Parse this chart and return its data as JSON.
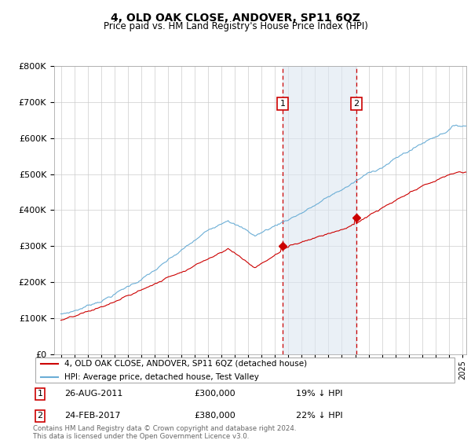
{
  "title": "4, OLD OAK CLOSE, ANDOVER, SP11 6QZ",
  "subtitle": "Price paid vs. HM Land Registry's House Price Index (HPI)",
  "legend_line1": "4, OLD OAK CLOSE, ANDOVER, SP11 6QZ (detached house)",
  "legend_line2": "HPI: Average price, detached house, Test Valley",
  "footnote": "Contains HM Land Registry data © Crown copyright and database right 2024.\nThis data is licensed under the Open Government Licence v3.0.",
  "transaction1_date": "26-AUG-2011",
  "transaction1_price": "£300,000",
  "transaction1_hpi": "19% ↓ HPI",
  "transaction2_date": "24-FEB-2017",
  "transaction2_price": "£380,000",
  "transaction2_hpi": "22% ↓ HPI",
  "hpi_color": "#6baed6",
  "price_color": "#cc0000",
  "marker_box_color": "#cc0000",
  "shade_color": "#dce6f1",
  "dashed_line_color": "#cc0000",
  "ylim_min": 0,
  "ylim_max": 800000,
  "x_start_year": 1995,
  "x_end_year": 2025,
  "t1_year": 2011.583,
  "t2_year": 2017.083,
  "t1_price": 300000,
  "t2_price": 380000
}
